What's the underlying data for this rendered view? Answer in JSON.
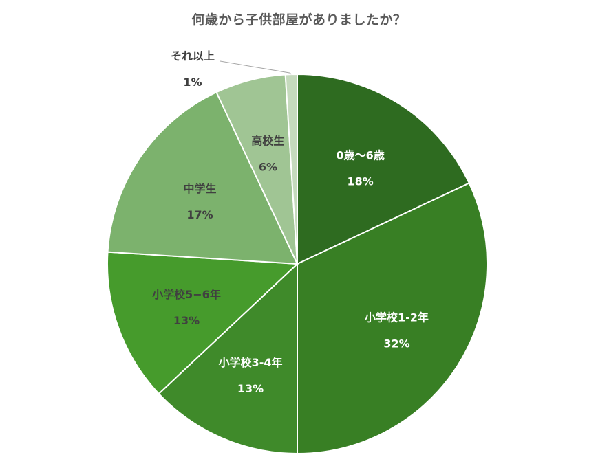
{
  "chart_data": {
    "type": "pie",
    "title": "何歳から子供部屋がありましたか？",
    "categories": [
      "0歳〜6歳",
      "小学校1-2年",
      "小学校3-4年",
      "小学校5−6年",
      "中学生",
      "高校生",
      "それ以上"
    ],
    "values": [
      18,
      32,
      13,
      13,
      17,
      6,
      1
    ],
    "value_labels": [
      "18%",
      "32%",
      "13%",
      "13%",
      "17%",
      "6%",
      "1%"
    ],
    "colors": [
      "#2e6b20",
      "#387f24",
      "#3f8a2a",
      "#469b2c",
      "#7cb26d",
      "#a0c594",
      "#c5dabd"
    ],
    "label_colors": [
      "#ffffff",
      "#ffffff",
      "#ffffff",
      "#404040",
      "#404040",
      "#404040",
      "#404040"
    ],
    "start_angle_deg": 0,
    "direction": "clockwise"
  }
}
